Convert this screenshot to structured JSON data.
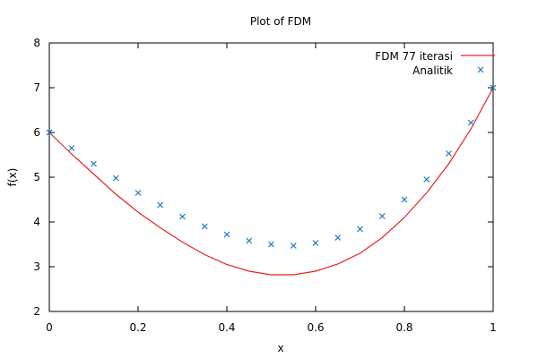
{
  "chart_data": {
    "type": "line",
    "title": "Plot of FDM",
    "xlabel": "x",
    "ylabel": "f(x)",
    "xlim": [
      0,
      1
    ],
    "ylim": [
      2,
      8
    ],
    "xticks": [
      "0",
      "0.2",
      "0.4",
      "0.6",
      "0.8",
      "1"
    ],
    "xtick_values": [
      0,
      0.2,
      0.4,
      0.6,
      0.8,
      1
    ],
    "yticks": [
      "2",
      "3",
      "4",
      "5",
      "6",
      "7",
      "8"
    ],
    "ytick_values": [
      2,
      3,
      4,
      5,
      6,
      7,
      8
    ],
    "grid": false,
    "legend_position": "top-right",
    "series": [
      {
        "name": "FDM 77 iterasi",
        "style": "line",
        "color": "#e8231f",
        "x": [
          0,
          0.05,
          0.1,
          0.15,
          0.2,
          0.25,
          0.3,
          0.35,
          0.4,
          0.45,
          0.5,
          0.55,
          0.6,
          0.65,
          0.7,
          0.75,
          0.8,
          0.85,
          0.9,
          0.95,
          1
        ],
        "y": [
          6.0,
          5.52,
          5.07,
          4.62,
          4.22,
          3.87,
          3.55,
          3.27,
          3.05,
          2.9,
          2.82,
          2.82,
          2.9,
          3.06,
          3.3,
          3.65,
          4.1,
          4.65,
          5.3,
          6.08,
          7.0
        ]
      },
      {
        "name": "Analitik",
        "style": "points",
        "marker": "x",
        "color": "#1f77c4",
        "x": [
          0,
          0.05,
          0.1,
          0.15,
          0.2,
          0.25,
          0.3,
          0.35,
          0.4,
          0.45,
          0.5,
          0.55,
          0.6,
          0.65,
          0.7,
          0.75,
          0.8,
          0.85,
          0.9,
          0.95,
          1
        ],
        "y": [
          6.0,
          5.65,
          5.3,
          4.98,
          4.65,
          4.38,
          4.12,
          3.9,
          3.72,
          3.58,
          3.5,
          3.47,
          3.53,
          3.65,
          3.84,
          4.13,
          4.5,
          4.95,
          5.53,
          6.22,
          7.0
        ]
      }
    ]
  }
}
